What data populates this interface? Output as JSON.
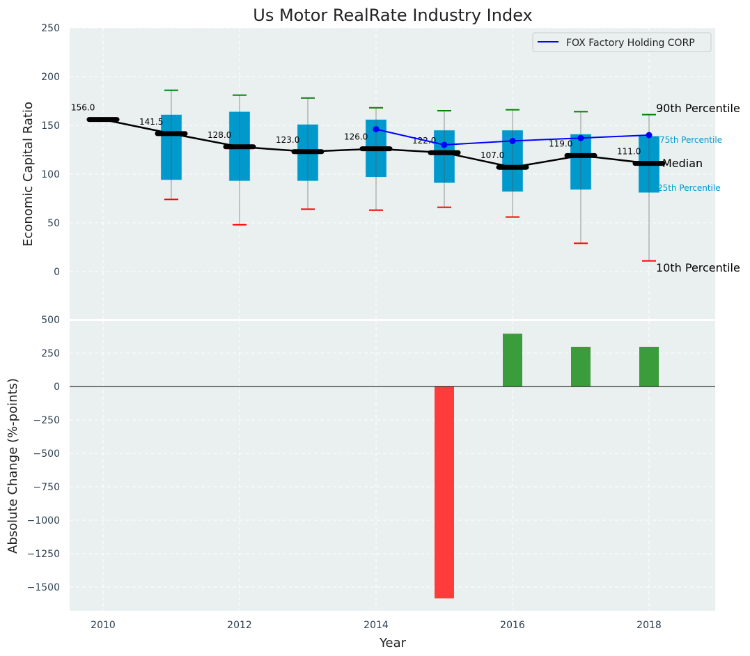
{
  "chart_data": [
    {
      "type": "box",
      "title": "Us Motor RealRate Industry Index",
      "ylabel": "Economic Capital Ratio",
      "ylim": [
        -50,
        250
      ],
      "xlim": [
        2009.5,
        2019
      ],
      "yticks": [
        0,
        50,
        100,
        150,
        200,
        250
      ],
      "years": [
        2010,
        2011,
        2012,
        2013,
        2014,
        2015,
        2016,
        2017,
        2018
      ],
      "median": [
        156.0,
        141.5,
        128.0,
        123.0,
        126.0,
        122.0,
        107.0,
        119.0,
        111.0
      ],
      "median_labels": [
        "156.0",
        "141.5",
        "128.0",
        "123.0",
        "126.0",
        "122.0",
        "107.0",
        "119.0",
        "111.0"
      ],
      "p25": [
        null,
        94,
        93,
        93,
        97,
        91,
        82,
        84,
        81
      ],
      "p75": [
        null,
        161,
        164,
        151,
        156,
        145,
        145,
        141,
        139
      ],
      "p10": [
        null,
        74,
        48,
        64,
        63,
        66,
        56,
        29,
        11
      ],
      "p90": [
        null,
        186,
        181,
        178,
        168,
        165,
        166,
        164,
        161
      ],
      "fox_series": {
        "name": "FOX Factory Holding CORP",
        "years": [
          2014,
          2015,
          2016,
          2017,
          2018
        ],
        "values": [
          146,
          130,
          134,
          137,
          140
        ]
      },
      "legend": "top-right",
      "annotations": [
        "90th Percentile",
        "75th Percentile",
        "Median",
        "25th Percentile",
        "10th Percentile"
      ],
      "colors": {
        "box": "#0099cc",
        "median": "#000000",
        "fox": "#0000ff",
        "p90": "#008000",
        "p10": "#ff0000",
        "bg": "#eaeff0"
      }
    },
    {
      "type": "bar",
      "xlabel": "Year",
      "ylabel": "Absolute Change (%-points)",
      "ylim": [
        -1680,
        500
      ],
      "yticks": [
        500,
        250,
        0,
        -250,
        -500,
        -750,
        -1000,
        -1250,
        -1500
      ],
      "ytick_labels": [
        "500",
        "250",
        "0",
        "−250",
        "−500",
        "−750",
        "−1000",
        "−1250",
        "−1500"
      ],
      "xticks": [
        2010,
        2012,
        2014,
        2016,
        2018
      ],
      "years": [
        2015,
        2016,
        2017,
        2018
      ],
      "values": [
        -1585,
        395,
        297,
        297
      ],
      "colors": {
        "positive": "#3a9c3a",
        "negative": "#ff3b3b"
      }
    }
  ]
}
